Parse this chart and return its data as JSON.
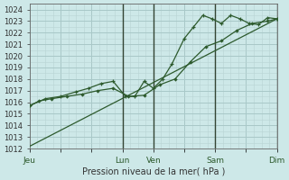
{
  "background_color": "#cde8e8",
  "grid_color_major": "#a8c8c8",
  "grid_color_minor": "#b8d4d4",
  "line_color": "#2d5a2d",
  "ylabel": "Pression niveau de la mer( hPa )",
  "ylim": [
    1012,
    1024.5
  ],
  "yticks": [
    1012,
    1013,
    1014,
    1015,
    1016,
    1017,
    1018,
    1019,
    1020,
    1021,
    1022,
    1023,
    1024
  ],
  "xtick_labels": [
    "Jeu",
    "",
    "",
    "Lun",
    "Ven",
    "",
    "Sam",
    "",
    "Dim"
  ],
  "xtick_positions": [
    0,
    1,
    2,
    3,
    4,
    5,
    6,
    7,
    8
  ],
  "x_total_days": 8,
  "vlines_x": [
    3.0,
    4.0,
    6.0,
    8.0
  ],
  "vline_color": "#334433",
  "series_straight": {
    "x": [
      0.0,
      8.0
    ],
    "y": [
      1012.2,
      1023.2
    ]
  },
  "series_smooth": {
    "x": [
      0.0,
      0.3,
      0.7,
      1.2,
      1.7,
      2.2,
      2.7,
      3.2,
      3.7,
      4.2,
      4.7,
      5.2,
      5.7,
      6.2,
      6.7,
      7.2,
      7.7,
      8.0
    ],
    "y": [
      1015.7,
      1016.1,
      1016.3,
      1016.5,
      1016.7,
      1017.0,
      1017.2,
      1016.5,
      1016.6,
      1017.5,
      1018.0,
      1019.5,
      1020.8,
      1021.3,
      1022.2,
      1022.8,
      1023.0,
      1023.2
    ]
  },
  "series_jagged": {
    "x": [
      0.0,
      0.5,
      1.0,
      1.5,
      1.9,
      2.3,
      2.7,
      3.1,
      3.4,
      3.7,
      4.0,
      4.3,
      4.6,
      5.0,
      5.3,
      5.6,
      5.9,
      6.2,
      6.5,
      6.8,
      7.1,
      7.4,
      7.7,
      8.0
    ],
    "y": [
      1015.7,
      1016.3,
      1016.5,
      1016.9,
      1017.2,
      1017.6,
      1017.8,
      1016.5,
      1016.5,
      1017.8,
      1017.2,
      1018.0,
      1019.3,
      1021.5,
      1022.5,
      1023.5,
      1023.2,
      1022.8,
      1023.5,
      1023.2,
      1022.8,
      1022.7,
      1023.3,
      1023.2
    ]
  }
}
